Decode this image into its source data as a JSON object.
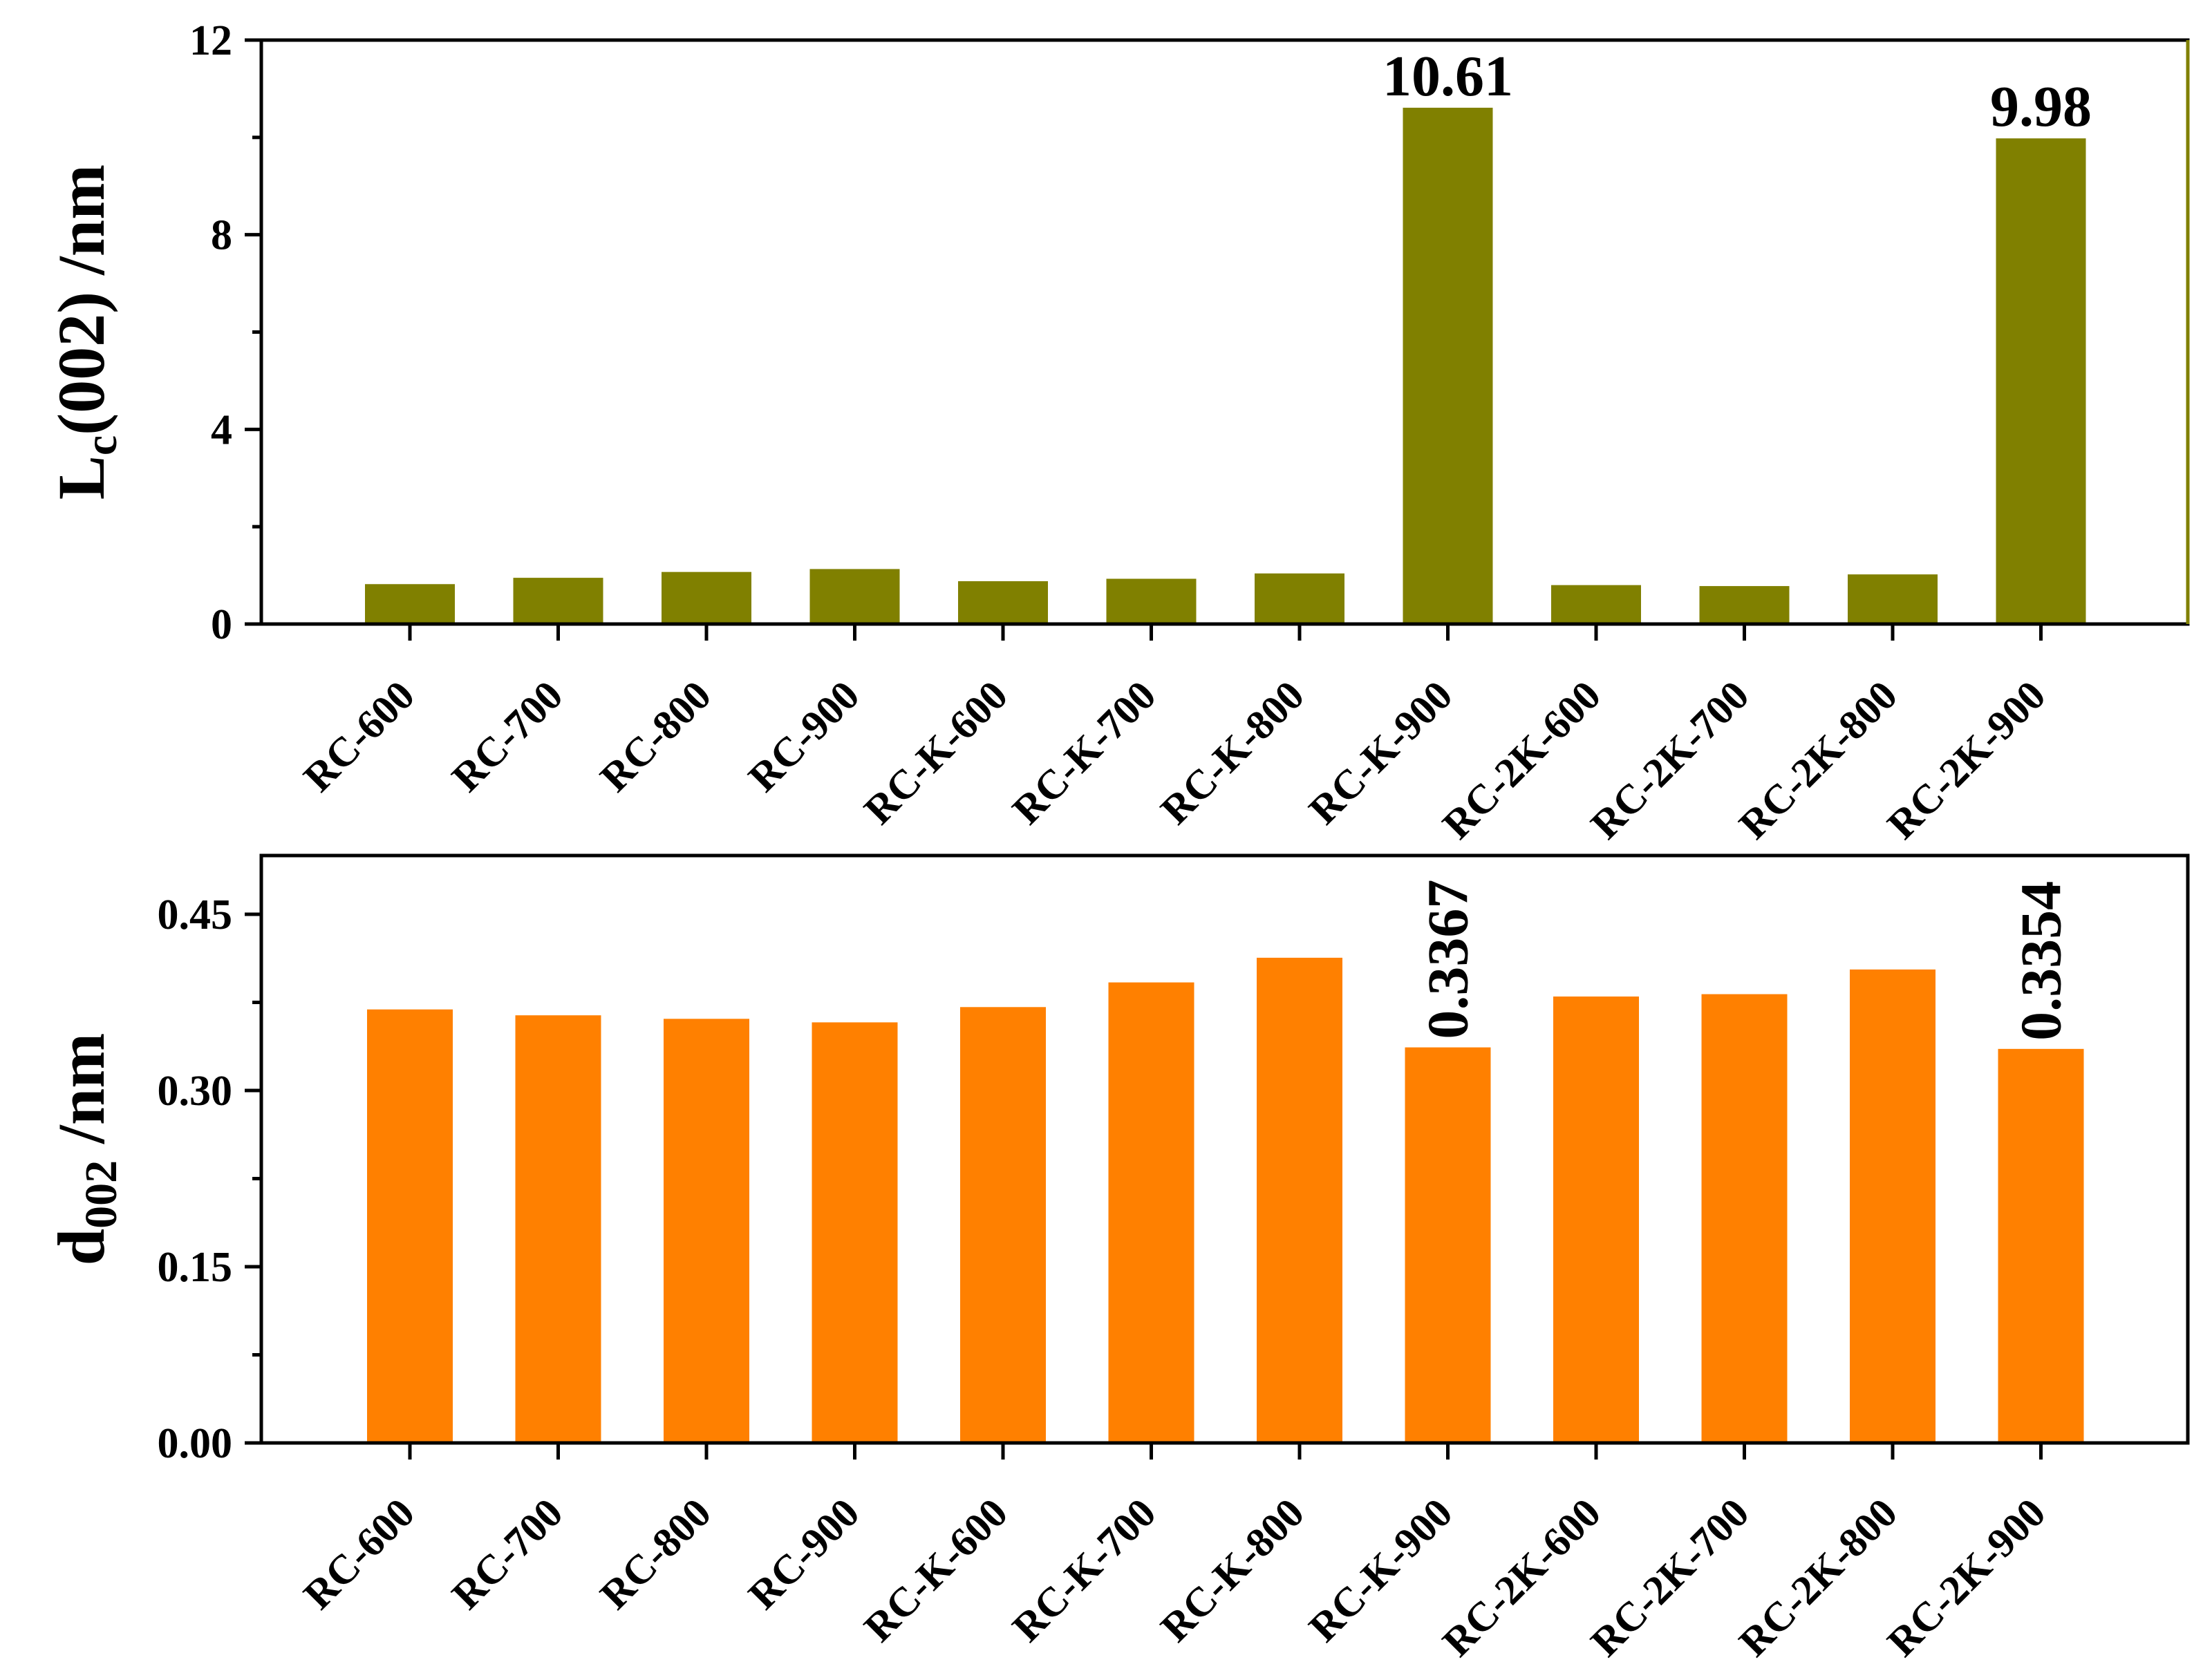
{
  "chart_data": [
    {
      "type": "bar",
      "panel": "top",
      "categories": [
        "RC-600",
        "RC-700",
        "RC-800",
        "RC-900",
        "RC-K-600",
        "RC-K-700",
        "RC-K-800",
        "RC-K-900",
        "RC-2K-600",
        "RC-2K-700",
        "RC-2K-800",
        "RC-2K-900"
      ],
      "values": [
        0.82,
        0.95,
        1.07,
        1.13,
        0.88,
        0.93,
        1.04,
        10.61,
        0.8,
        0.78,
        1.02,
        9.98
      ],
      "ylabel_main": "L",
      "ylabel_sub": "c",
      "ylabel_rest": "(002)  /nm",
      "ylim": [
        0,
        12
      ],
      "yticks": [
        "0",
        "4",
        "8",
        "12"
      ],
      "ytick_values": [
        0,
        4,
        8,
        12
      ],
      "ytick_minor_step": 2,
      "annotations": [
        {
          "category": "RC-K-900",
          "text": "10.61"
        },
        {
          "category": "RC-2K-900",
          "text": "9.98"
        }
      ],
      "annotation_orientation": "horizontal",
      "color": "#808000",
      "right_border_color": "#808000"
    },
    {
      "type": "bar",
      "panel": "bottom",
      "categories": [
        "RC-600",
        "RC-700",
        "RC-800",
        "RC-900",
        "RC-K-600",
        "RC-K-700",
        "RC-K-800",
        "RC-K-900",
        "RC-2K-600",
        "RC-2K-700",
        "RC-2K-800",
        "RC-2K-900"
      ],
      "values": [
        0.369,
        0.364,
        0.361,
        0.358,
        0.371,
        0.392,
        0.413,
        0.3367,
        0.38,
        0.382,
        0.403,
        0.3354
      ],
      "ylabel_main": "d",
      "ylabel_sub": "002",
      "ylabel_rest": "  /nm",
      "ylim": [
        0,
        0.5
      ],
      "yticks": [
        "0.00",
        "0.15",
        "0.30",
        "0.45"
      ],
      "ytick_values": [
        0,
        0.15,
        0.3,
        0.45
      ],
      "ytick_minor_step": 0.075,
      "annotations": [
        {
          "category": "RC-K-900",
          "text": "0.3367"
        },
        {
          "category": "RC-2K-900",
          "text": "0.3354"
        }
      ],
      "annotation_orientation": "vertical",
      "color": "#ff8000",
      "right_border_color": "#000000"
    }
  ]
}
